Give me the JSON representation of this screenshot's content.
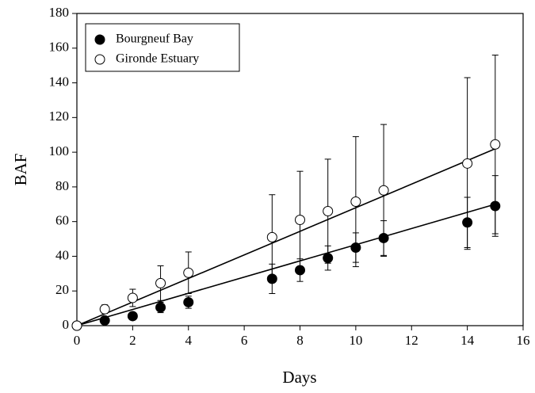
{
  "chart_data": {
    "type": "scatter",
    "x_label": "Days",
    "y_label": "BAF",
    "x": [
      0,
      1,
      2,
      3,
      4,
      7,
      8,
      9,
      10,
      11,
      14,
      15
    ],
    "series": [
      {
        "name": "Bourgneuf Bay",
        "color": "#000000",
        "filled": true,
        "values": [
          0,
          3,
          5.5,
          10.5,
          13.5,
          27,
          32,
          39,
          45,
          50.5,
          59.5,
          69
        ],
        "errors": [
          0,
          0,
          0,
          3,
          3.5,
          8.5,
          6.5,
          7,
          8.5,
          10,
          14.5,
          17.5
        ],
        "fit": {
          "x": [
            0,
            15
          ],
          "values": [
            0,
            70
          ]
        }
      },
      {
        "name": "Gironde Estuary",
        "color": "#000000",
        "filled": false,
        "values": [
          0,
          9.5,
          16,
          24.5,
          30.5,
          51,
          61,
          66,
          71.5,
          78,
          93.5,
          104.5
        ],
        "errors": [
          0,
          2.5,
          5,
          10,
          12,
          24.5,
          28,
          30,
          37.5,
          38,
          49.5,
          51.5
        ],
        "fit": {
          "x": [
            0,
            15
          ],
          "values": [
            0,
            102
          ]
        }
      }
    ],
    "xlim": [
      0,
      16
    ],
    "xticks": [
      0,
      2,
      4,
      6,
      8,
      10,
      12,
      14,
      16
    ],
    "ylim": [
      0,
      180
    ],
    "yticks": [
      0,
      20,
      40,
      60,
      80,
      100,
      120,
      140,
      160,
      180
    ],
    "legend": "top-left"
  }
}
